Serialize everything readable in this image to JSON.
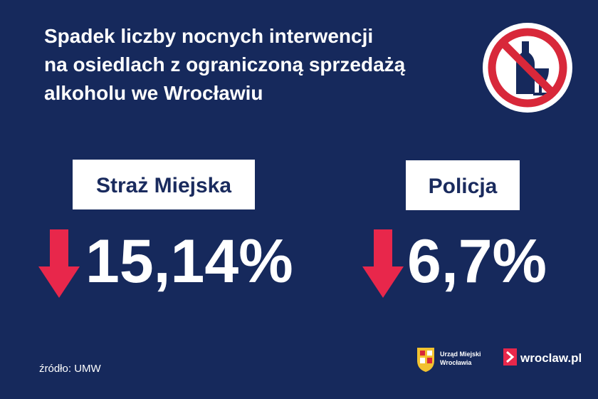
{
  "header": {
    "title_lines": [
      "Spadek liczby nocnych interwencji",
      "na osiedlach z ograniczoną sprzedażą",
      "alkoholu we Wrocławiu"
    ]
  },
  "stats": [
    {
      "label": "Straż Miejska",
      "value": "15,14%"
    },
    {
      "label": "Policja",
      "value": "6,7%"
    }
  ],
  "footer": {
    "source": "źródło: UMW",
    "city_office": [
      "Urząd Miejski",
      "Wrocławia"
    ],
    "site": "wroclaw.pl"
  }
}
